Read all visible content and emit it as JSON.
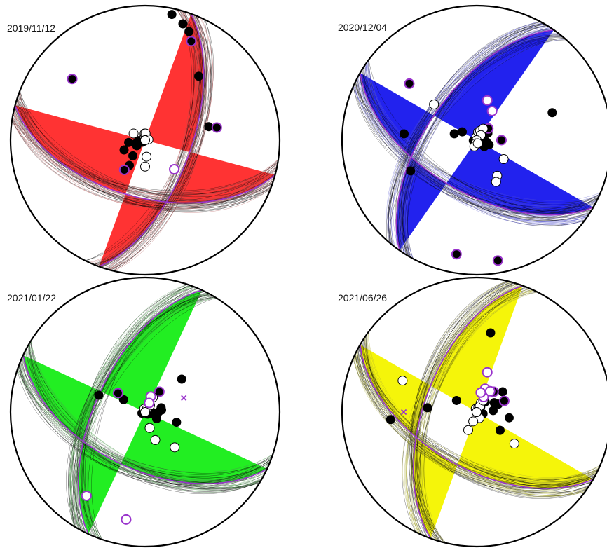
{
  "figure": {
    "panels": [
      {
        "date": "2019/11/12",
        "fill_color": "#ff3333",
        "plane_tint": "#b05050",
        "planes": {
          "a": {
            "strike": 20,
            "dip": 62
          },
          "b": {
            "strike": 105,
            "dip": 55
          }
        },
        "polarities": {
          "up": [
            [
              12,
              5
            ],
            [
              18,
              10
            ],
            [
              22,
              14
            ],
            [
              40,
              38
            ],
            [
              78,
              50
            ],
            [
              260,
              90
            ],
            [
              266,
              86
            ],
            [
              262,
              80
            ],
            [
              250,
              84
            ],
            [
              245,
              76
            ],
            [
              236,
              84
            ],
            [
              232,
              88
            ],
            [
              218,
              78
            ],
            [
              212,
              72
            ]
          ],
          "up_ringed": [
            [
              25,
              20
            ],
            [
              310,
              30
            ],
            [
              80,
              45
            ],
            [
              215,
              68
            ]
          ],
          "down": [
            [
              350,
              88
            ],
            [
              356,
              86
            ],
            [
              4,
              86
            ],
            [
              300,
              82
            ],
            [
              288,
              90
            ],
            [
              80,
              88
            ],
            [
              175,
              80
            ],
            [
              180,
              74
            ],
            [
              185,
              90
            ]
          ],
          "down_ringed": [
            [
              135,
              65
            ]
          ],
          "axes": []
        }
      },
      {
        "date": "2020/12/04",
        "fill_color": "#2222ee",
        "plane_tint": "#5a5ad0",
        "planes": {
          "a": {
            "strike": 215,
            "dip": 60
          },
          "b": {
            "strike": 120,
            "dip": 58
          }
        },
        "polarities": {
          "up": [
            [
              58,
              82
            ],
            [
              65,
              88
            ],
            [
              74,
              88
            ],
            [
              90,
              86
            ],
            [
              100,
              84
            ],
            [
              110,
              82
            ],
            [
              130,
              84
            ],
            [
              125,
              86
            ],
            [
              286,
              76
            ],
            [
              275,
              45
            ],
            [
              245,
              45
            ],
            [
              262,
              88
            ],
            [
              300,
              80
            ],
            [
              70,
              40
            ]
          ],
          "up_ringed": [
            [
              45,
              80
            ],
            [
              90,
              75
            ],
            [
              310,
              35
            ],
            [
              190,
              15
            ],
            [
              170,
              10
            ]
          ],
          "down": [
            [
              358,
              88
            ],
            [
              10,
              85
            ],
            [
              20,
              84
            ],
            [
              30,
              82
            ],
            [
              40,
              86
            ],
            [
              310,
              56
            ],
            [
              125,
              70
            ],
            [
              150,
              65
            ],
            [
              155,
              62
            ],
            [
              180,
              90
            ],
            [
              195,
              88
            ],
            [
              200,
              86
            ],
            [
              160,
              88
            ]
          ],
          "down_ringed": [
            [
              28,
              70
            ],
            [
              15,
              65
            ]
          ],
          "axes": []
        }
      },
      {
        "date": "2021/01/22",
        "fill_color": "#22ee22",
        "plane_tint": "#4c9a4c",
        "planes": {
          "a": {
            "strike": 205,
            "dip": 60
          },
          "b": {
            "strike": 115,
            "dip": 55
          }
        },
        "polarities": {
          "up": [
            [
              60,
              90
            ],
            [
              48,
              60
            ],
            [
              75,
              80
            ],
            [
              83,
              80
            ],
            [
              90,
              82
            ],
            [
              95,
              85
            ],
            [
              100,
              86
            ],
            [
              105,
              88
            ],
            [
              120,
              90
            ],
            [
              108,
              70
            ],
            [
              128,
              88
            ],
            [
              120,
              82
            ],
            [
              250,
              88
            ],
            [
              290,
              60
            ],
            [
              300,
              75
            ]
          ],
          "up_ringed": [
            [
              305,
              70
            ],
            [
              35,
              75
            ]
          ],
          "down": [
            [
              0,
              90
            ],
            [
              345,
              88
            ],
            [
              30,
              88
            ],
            [
              36,
              85
            ],
            [
              28,
              80
            ],
            [
              295,
              90
            ],
            [
              140,
              62
            ],
            [
              160,
              72
            ],
            [
              164,
              80
            ]
          ],
          "down_ringed": [
            [
              20,
              80
            ],
            [
              24,
              84
            ],
            [
              190,
              20
            ],
            [
              215,
              25
            ]
          ],
          "axes": [
            [
              70,
              65
            ]
          ]
        }
      },
      {
        "date": "2021/06/26",
        "fill_color": "#f5f50a",
        "plane_tint": "#aaaa33",
        "planes": {
          "a": {
            "strike": 200,
            "dip": 58
          },
          "b": {
            "strike": 120,
            "dip": 56
          }
        },
        "polarities": {
          "up": [
            [
              38,
              86
            ],
            [
              40,
              82
            ],
            [
              52,
              70
            ],
            [
              62,
              78
            ],
            [
              70,
              76
            ],
            [
              85,
              80
            ],
            [
              95,
              88
            ],
            [
              105,
              86
            ],
            [
              110,
              90
            ],
            [
              128,
              72
            ],
            [
              100,
              70
            ],
            [
              250,
              90
            ],
            [
              265,
              36
            ],
            [
              275,
              60
            ],
            [
              300,
              76
            ],
            [
              10,
              40
            ]
          ],
          "up_ringed": [
            [
              40,
              74
            ],
            [
              68,
              72
            ]
          ],
          "down": [
            [
              0,
              90
            ],
            [
              345,
              88
            ],
            [
              20,
              87
            ],
            [
              24,
              84
            ],
            [
              28,
              86
            ],
            [
              30,
              82
            ],
            [
              293,
              40
            ],
            [
              130,
              60
            ],
            [
              155,
              86
            ],
            [
              160,
              90
            ],
            [
              215,
              90
            ],
            [
              205,
              78
            ],
            [
              200,
              84
            ]
          ],
          "down_ringed": [
            [
              20,
              75
            ],
            [
              25,
              80
            ],
            [
              15,
              65
            ],
            [
              33,
              75
            ],
            [
              12,
              78
            ]
          ],
          "axes": [
            [
              270,
              45
            ]
          ]
        }
      }
    ]
  }
}
